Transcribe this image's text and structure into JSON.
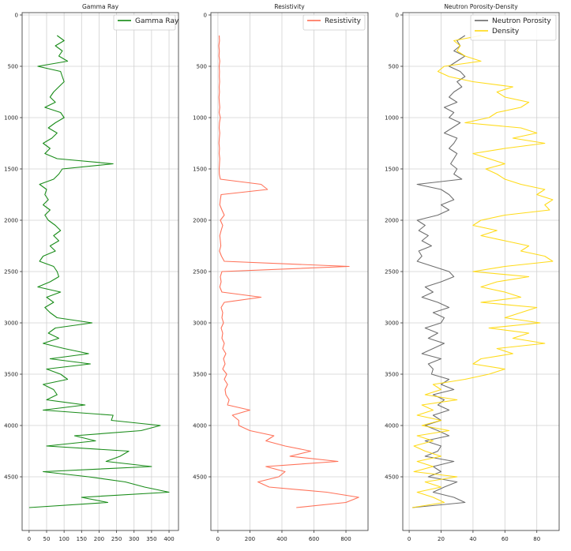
{
  "chart_data": [
    {
      "type": "line",
      "title": "Gamma Ray",
      "xlabel": "",
      "ylabel": "",
      "xlim": [
        -20,
        427
      ],
      "ylim": [
        5023,
        -23
      ],
      "y_inverted": true,
      "grid": true,
      "legend_position": "top-right",
      "xticks": [
        0,
        50,
        100,
        150,
        200,
        250,
        300,
        350,
        400
      ],
      "yticks": [
        0,
        500,
        1000,
        1500,
        2000,
        2500,
        3000,
        3500,
        4000,
        4500
      ],
      "depth": [
        200,
        250,
        300,
        350,
        400,
        450,
        500,
        550,
        600,
        650,
        700,
        750,
        800,
        850,
        900,
        950,
        1000,
        1050,
        1100,
        1150,
        1200,
        1250,
        1300,
        1350,
        1400,
        1450,
        1500,
        1550,
        1600,
        1650,
        1700,
        1750,
        1800,
        1850,
        1900,
        1950,
        2000,
        2050,
        2100,
        2150,
        2200,
        2250,
        2300,
        2350,
        2400,
        2450,
        2500,
        2550,
        2600,
        2650,
        2700,
        2750,
        2800,
        2850,
        2900,
        2950,
        3000,
        3050,
        3100,
        3150,
        3200,
        3250,
        3300,
        3350,
        3400,
        3450,
        3500,
        3550,
        3600,
        3650,
        3700,
        3750,
        3800,
        3850,
        3900,
        3950,
        4000,
        4050,
        4100,
        4150,
        4200,
        4250,
        4300,
        4350,
        4400,
        4450,
        4500,
        4550,
        4600,
        4650,
        4700,
        4750,
        4800
      ],
      "series": [
        {
          "name": "Gamma Ray",
          "color": "#008000",
          "values": [
            80,
            100,
            75,
            95,
            85,
            110,
            25,
            90,
            95,
            100,
            85,
            70,
            60,
            75,
            45,
            90,
            100,
            75,
            55,
            80,
            65,
            40,
            60,
            45,
            80,
            240,
            95,
            85,
            70,
            30,
            50,
            45,
            55,
            40,
            60,
            45,
            55,
            75,
            90,
            70,
            85,
            60,
            75,
            40,
            30,
            70,
            80,
            85,
            60,
            25,
            90,
            50,
            70,
            45,
            60,
            80,
            180,
            75,
            55,
            85,
            40,
            100,
            170,
            60,
            175,
            50,
            90,
            110,
            40,
            70,
            80,
            50,
            160,
            40,
            240,
            235,
            375,
            320,
            130,
            190,
            50,
            285,
            260,
            220,
            350,
            40,
            170,
            275,
            330,
            400,
            150,
            225,
            0
          ]
        }
      ]
    },
    {
      "type": "line",
      "title": "Resistivity",
      "xlabel": "",
      "ylabel": "",
      "xlim": [
        -44,
        938
      ],
      "ylim": [
        5023,
        -23
      ],
      "y_inverted": true,
      "grid": true,
      "legend_position": "top-right",
      "xticks": [
        0,
        200,
        400,
        600,
        800
      ],
      "yticks": [
        0,
        500,
        1000,
        1500,
        2000,
        2500,
        3000,
        3500,
        4000,
        4500
      ],
      "depth": [
        200,
        250,
        300,
        350,
        400,
        450,
        500,
        550,
        600,
        650,
        700,
        750,
        800,
        850,
        900,
        950,
        1000,
        1050,
        1100,
        1150,
        1200,
        1250,
        1300,
        1350,
        1400,
        1450,
        1500,
        1550,
        1600,
        1650,
        1700,
        1750,
        1800,
        1850,
        1900,
        1950,
        2000,
        2050,
        2100,
        2150,
        2200,
        2250,
        2300,
        2350,
        2400,
        2450,
        2500,
        2550,
        2600,
        2650,
        2700,
        2750,
        2800,
        2850,
        2900,
        2950,
        3000,
        3050,
        3100,
        3150,
        3200,
        3250,
        3300,
        3350,
        3400,
        3450,
        3500,
        3550,
        3600,
        3650,
        3700,
        3750,
        3800,
        3850,
        3900,
        3950,
        4000,
        4050,
        4100,
        4150,
        4200,
        4250,
        4300,
        4350,
        4400,
        4450,
        4500,
        4550,
        4600,
        4650,
        4700,
        4750,
        4800
      ],
      "series": [
        {
          "name": "Resistivity",
          "color": "#ff6347",
          "values": [
            8,
            10,
            6,
            9,
            7,
            12,
            8,
            10,
            9,
            11,
            8,
            10,
            7,
            9,
            12,
            8,
            15,
            10,
            8,
            12,
            9,
            7,
            10,
            8,
            12,
            10,
            8,
            9,
            15,
            270,
            310,
            20,
            15,
            12,
            25,
            40,
            15,
            30,
            20,
            12,
            15,
            18,
            10,
            22,
            40,
            820,
            25,
            15,
            20,
            12,
            25,
            270,
            40,
            20,
            30,
            25,
            35,
            20,
            30,
            25,
            40,
            30,
            50,
            35,
            45,
            30,
            55,
            40,
            60,
            45,
            50,
            70,
            60,
            200,
            90,
            130,
            130,
            200,
            350,
            300,
            420,
            580,
            450,
            750,
            300,
            420,
            380,
            250,
            320,
            680,
            880,
            800,
            490
          ]
        }
      ]
    },
    {
      "type": "line",
      "title": "Neutron Porosity-Density",
      "xlabel": "",
      "ylabel": "",
      "xlim": [
        -4,
        94
      ],
      "ylim": [
        5023,
        -23
      ],
      "y_inverted": true,
      "grid": true,
      "legend_position": "top-right",
      "xticks": [
        0,
        20,
        40,
        60,
        80
      ],
      "yticks": [
        0,
        500,
        1000,
        1500,
        2000,
        2500,
        3000,
        3500,
        4000,
        4500
      ],
      "depth": [
        200,
        250,
        300,
        350,
        400,
        450,
        500,
        550,
        600,
        650,
        700,
        750,
        800,
        850,
        900,
        950,
        1000,
        1050,
        1100,
        1150,
        1200,
        1250,
        1300,
        1350,
        1400,
        1450,
        1500,
        1550,
        1600,
        1650,
        1700,
        1750,
        1800,
        1850,
        1900,
        1950,
        2000,
        2050,
        2100,
        2150,
        2200,
        2250,
        2300,
        2350,
        2400,
        2450,
        2500,
        2550,
        2600,
        2650,
        2700,
        2750,
        2800,
        2850,
        2900,
        2950,
        3000,
        3050,
        3100,
        3150,
        3200,
        3250,
        3300,
        3350,
        3400,
        3450,
        3500,
        3550,
        3600,
        3650,
        3700,
        3750,
        3800,
        3850,
        3900,
        3950,
        4000,
        4050,
        4100,
        4150,
        4200,
        4250,
        4300,
        4350,
        4400,
        4450,
        4500,
        4550,
        4600,
        4650,
        4700,
        4750,
        4800
      ],
      "series": [
        {
          "name": "Neutron Porosity",
          "color": "#5f5f5f",
          "values": [
            35,
            30,
            32,
            28,
            35,
            30,
            25,
            32,
            35,
            30,
            33,
            28,
            25,
            30,
            22,
            28,
            25,
            32,
            27,
            22,
            30,
            28,
            25,
            30,
            28,
            26,
            30,
            28,
            33,
            5,
            20,
            25,
            28,
            20,
            25,
            18,
            5,
            10,
            6,
            12,
            8,
            14,
            6,
            8,
            5,
            15,
            25,
            28,
            20,
            10,
            15,
            8,
            18,
            25,
            15,
            22,
            20,
            10,
            18,
            12,
            22,
            15,
            8,
            20,
            12,
            15,
            14,
            25,
            20,
            28,
            15,
            22,
            18,
            25,
            15,
            20,
            10,
            18,
            25,
            10,
            20,
            18,
            10,
            28,
            15,
            20,
            12,
            30,
            22,
            15,
            28,
            35,
            2
          ]
        },
        {
          "name": "Density",
          "color": "#ffd700",
          "values": [
            45,
            28,
            32,
            30,
            35,
            45,
            22,
            18,
            25,
            40,
            65,
            55,
            60,
            75,
            70,
            55,
            50,
            35,
            70,
            80,
            65,
            85,
            60,
            40,
            50,
            60,
            48,
            55,
            60,
            70,
            85,
            80,
            90,
            85,
            88,
            60,
            45,
            40,
            55,
            45,
            60,
            75,
            70,
            85,
            90,
            60,
            40,
            75,
            55,
            45,
            60,
            70,
            45,
            80,
            70,
            60,
            82,
            50,
            75,
            65,
            85,
            55,
            65,
            45,
            40,
            60,
            50,
            35,
            15,
            20,
            10,
            30,
            8,
            15,
            5,
            20,
            8,
            25,
            5,
            15,
            3,
            10,
            20,
            5,
            15,
            3,
            30,
            10,
            20,
            5,
            15,
            22,
            2
          ]
        }
      ]
    }
  ]
}
